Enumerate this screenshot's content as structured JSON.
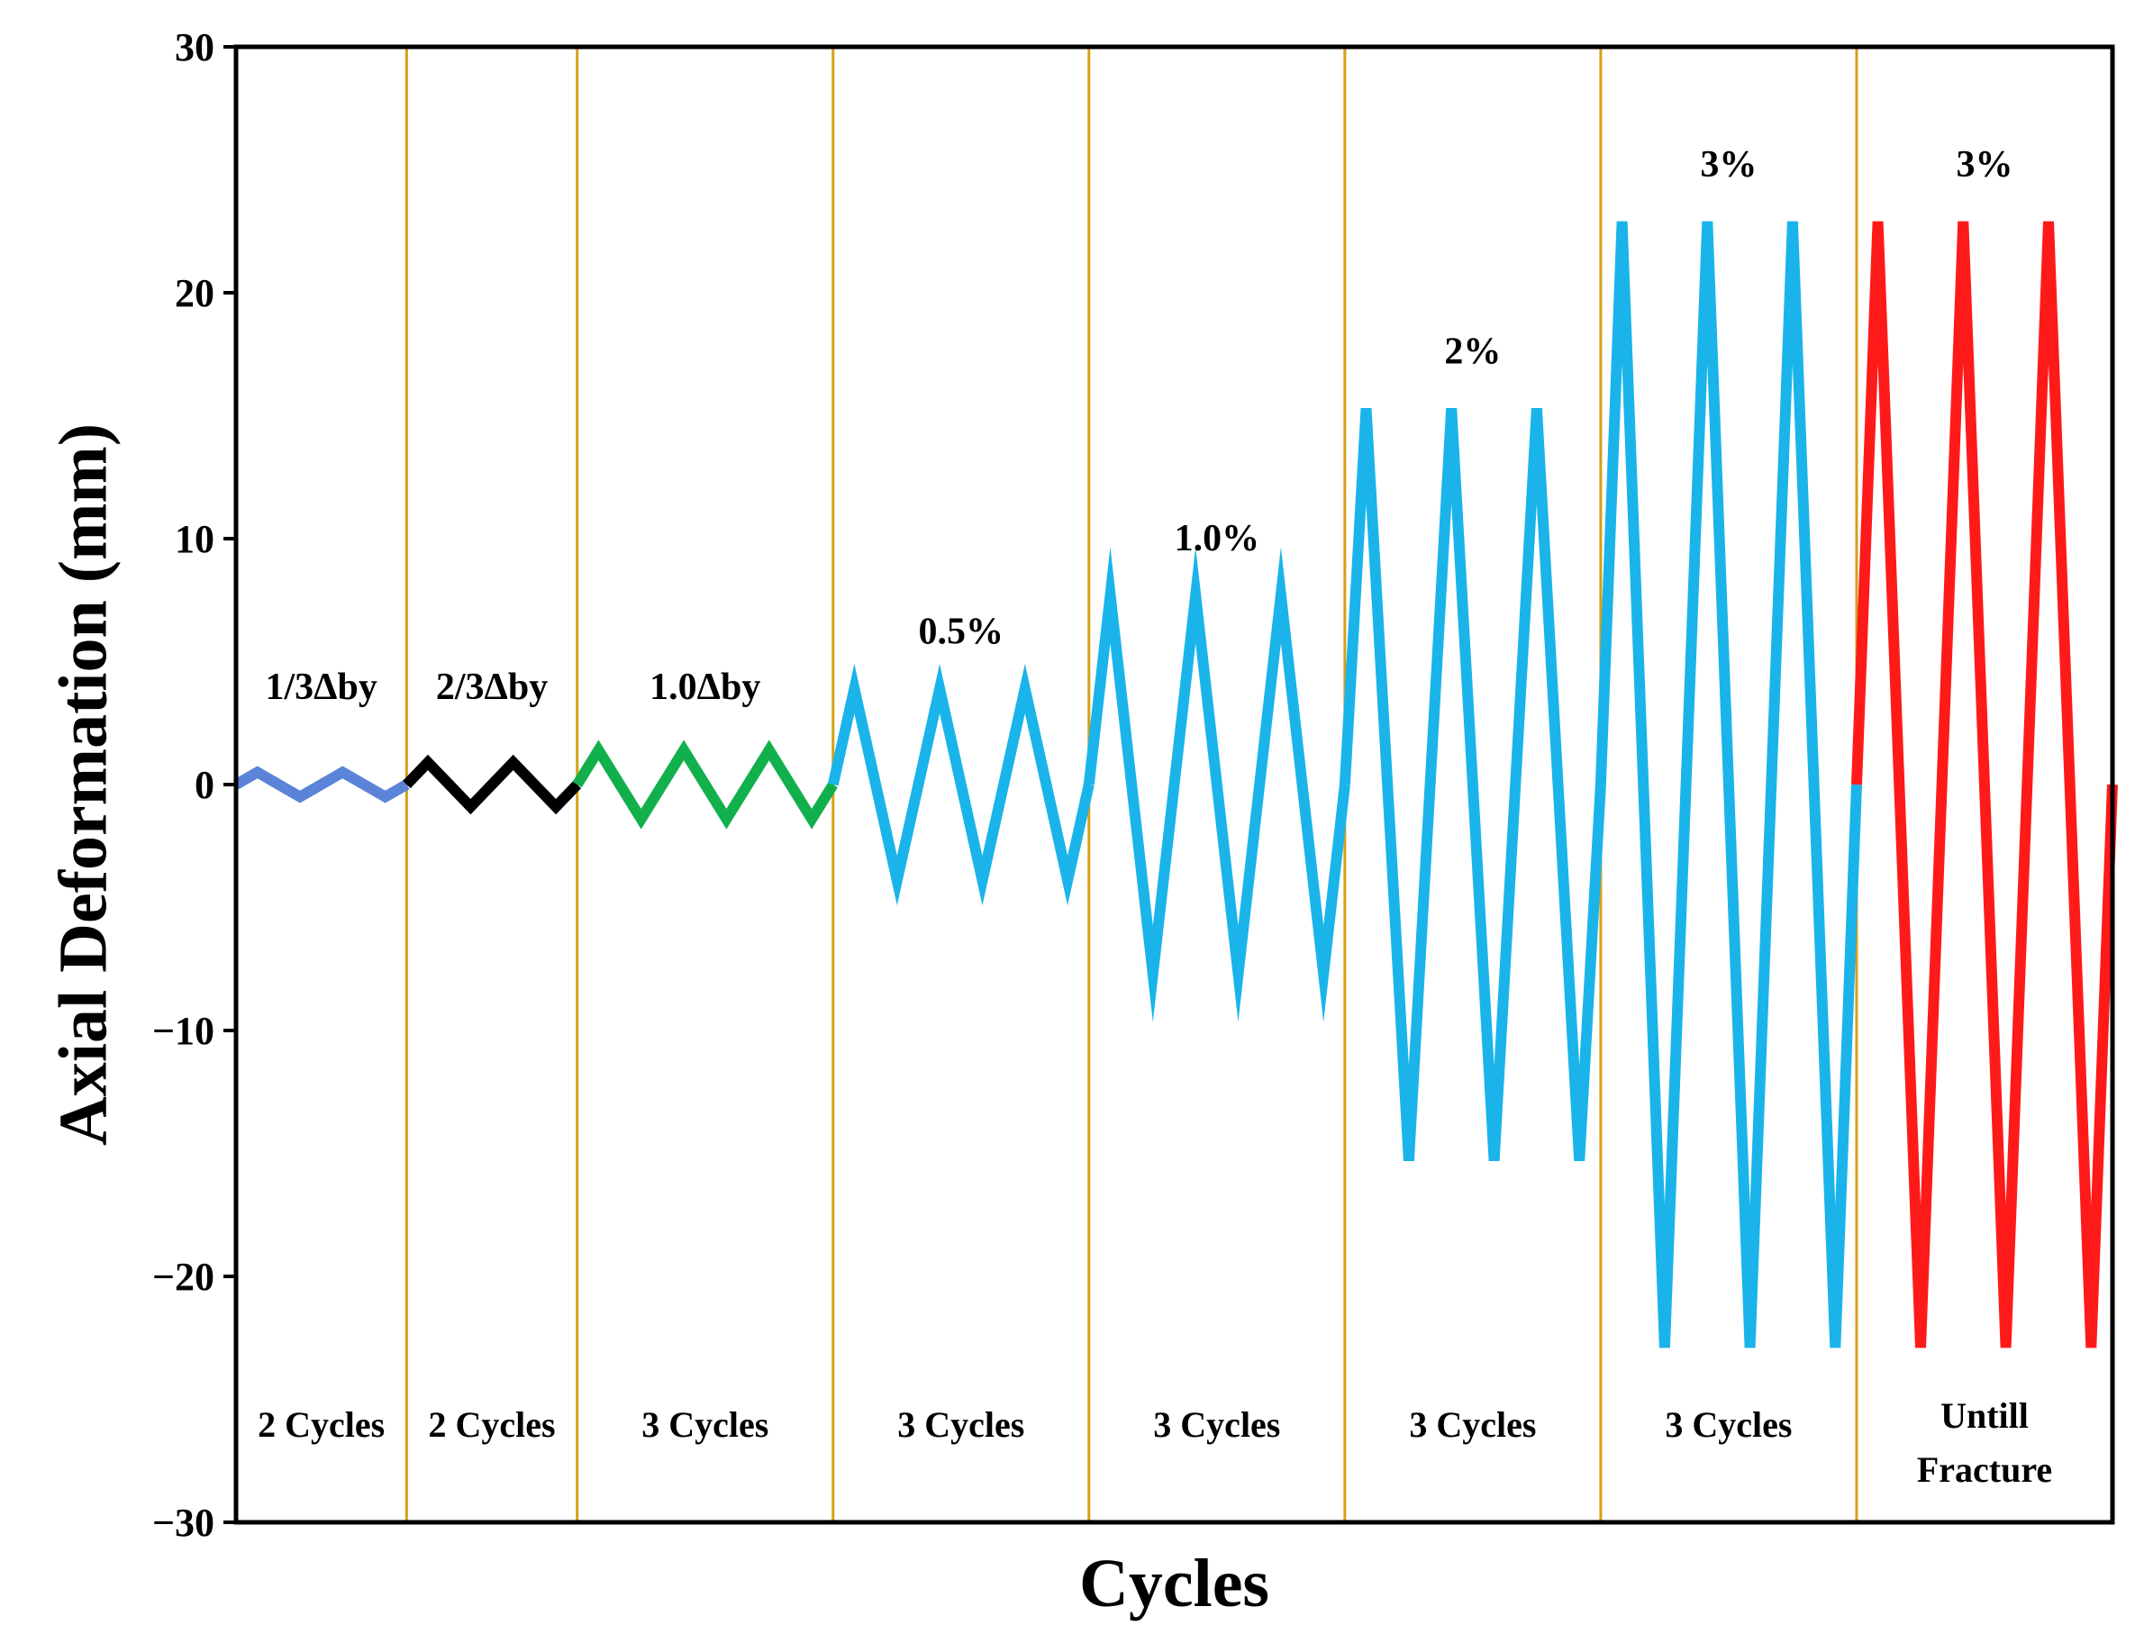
{
  "chart_data": {
    "type": "line",
    "xlabel": "Cycles",
    "ylabel": "Axial Deformation (mm)",
    "ylim": [
      -30,
      30
    ],
    "yticks": [
      30,
      20,
      10,
      0,
      -10,
      -20,
      -30
    ],
    "grid": false,
    "legend": "none",
    "colors": {
      "divider": "#d4a017",
      "blue": "#5b84d8",
      "black": "#000000",
      "green": "#12b04c",
      "cyan": "#1ab4ea",
      "red": "#ff1a1a"
    },
    "stages": [
      {
        "label": "1/3Δby",
        "cycles_label": "2 Cycles",
        "cycles": 2,
        "amplitude": 0.5,
        "color": "#5b84d8"
      },
      {
        "label": "2/3Δby",
        "cycles_label": "2 Cycles",
        "cycles": 2,
        "amplitude": 0.9,
        "color": "#000000"
      },
      {
        "label": "1.0Δby",
        "cycles_label": "3 Cycles",
        "cycles": 3,
        "amplitude": 1.4,
        "color": "#12b04c"
      },
      {
        "label": "0.5%",
        "cycles_label": "3 Cycles",
        "cycles": 3,
        "amplitude": 3.9,
        "color": "#1ab4ea"
      },
      {
        "label": "1.0%",
        "cycles_label": "3 Cycles",
        "cycles": 3,
        "amplitude": 7.7,
        "color": "#1ab4ea"
      },
      {
        "label": "2%",
        "cycles_label": "3 Cycles",
        "cycles": 3,
        "amplitude": 15.3,
        "color": "#1ab4ea"
      },
      {
        "label": "3%",
        "cycles_label": "3 Cycles",
        "cycles": 3,
        "amplitude": 22.9,
        "color": "#1ab4ea"
      },
      {
        "label": "3%",
        "cycles_label": [
          "Untill",
          "Fracture"
        ],
        "cycles": 3,
        "amplitude": 22.9,
        "color": "#ff1a1a"
      }
    ]
  }
}
